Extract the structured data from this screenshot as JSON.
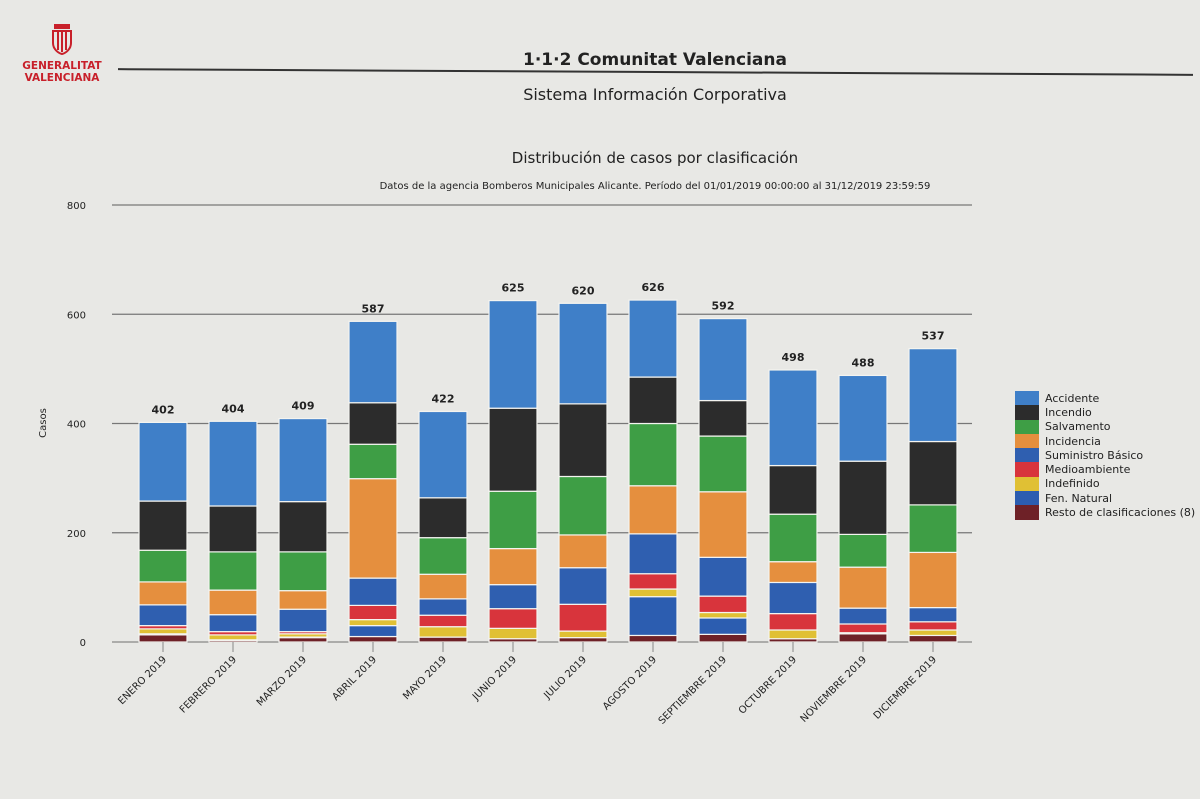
{
  "header": {
    "logo_text": [
      "GENERALITAT",
      "VALENCIANA"
    ],
    "title": "1·1·2 Comunitat Valenciana",
    "subtitle": "Sistema Información Corporativa"
  },
  "chart_data": {
    "type": "bar",
    "stacked": true,
    "title": "Distribución de casos por clasificación",
    "subtitle": "Datos de la agencia Bomberos Municipales Alicante. Período del 01/01/2019 00:00:00 al 31/12/2019 23:59:59",
    "xlabel": "",
    "ylabel": "Casos",
    "ylim": [
      0,
      800
    ],
    "yticks": [
      0,
      200,
      400,
      600,
      800
    ],
    "grid": true,
    "legend_position": "right",
    "categories": [
      "ENERO 2019",
      "FEBRERO 2019",
      "MARZO 2019",
      "ABRIL 2019",
      "MAYO 2019",
      "JUNIO 2019",
      "JULIO 2019",
      "AGOSTO 2019",
      "SEPTIEMBRE 2019",
      "OCTUBRE 2019",
      "NOVIEMBRE 2019",
      "DICIEMBRE 2019"
    ],
    "totals": [
      402,
      404,
      409,
      587,
      422,
      625,
      620,
      626,
      592,
      498,
      488,
      537
    ],
    "series": [
      {
        "name": "Accidente",
        "color": "#3f7fc8",
        "values": [
          144,
          155,
          152,
          149,
          158,
          197,
          184,
          141,
          150,
          175,
          157,
          170
        ]
      },
      {
        "name": "Incendio",
        "color": "#2c2c2c",
        "values": [
          90,
          84,
          92,
          76,
          73,
          152,
          133,
          85,
          65,
          89,
          134,
          116
        ]
      },
      {
        "name": "Salvamento",
        "color": "#3e9e45",
        "values": [
          58,
          70,
          71,
          63,
          67,
          105,
          107,
          114,
          102,
          87,
          60,
          87
        ]
      },
      {
        "name": "Incidencia",
        "color": "#e58f3e",
        "values": [
          42,
          45,
          34,
          182,
          45,
          66,
          60,
          88,
          120,
          38,
          75,
          101
        ]
      },
      {
        "name": "Suministro Básico",
        "color": "#2f5fb0",
        "values": [
          38,
          31,
          41,
          50,
          30,
          44,
          67,
          73,
          71,
          57,
          29,
          26
        ]
      },
      {
        "name": "Medioambiente",
        "color": "#d8343c",
        "values": [
          6,
          6,
          4,
          26,
          21,
          36,
          49,
          28,
          30,
          30,
          16,
          15
        ]
      },
      {
        "name": "Indefinido",
        "color": "#e0c034",
        "values": [
          9,
          9,
          6,
          11,
          19,
          19,
          12,
          14,
          10,
          16,
          2,
          10
        ]
      },
      {
        "name": "Fen. Natural",
        "color": "#2c5db0",
        "values": [
          2,
          1,
          1,
          20,
          0,
          0,
          0,
          71,
          30,
          0,
          0,
          0
        ]
      },
      {
        "name": "Resto de clasificaciones (8)",
        "color": "#6e2127",
        "values": [
          13,
          3,
          8,
          10,
          9,
          6,
          8,
          12,
          14,
          6,
          15,
          12
        ]
      }
    ]
  }
}
